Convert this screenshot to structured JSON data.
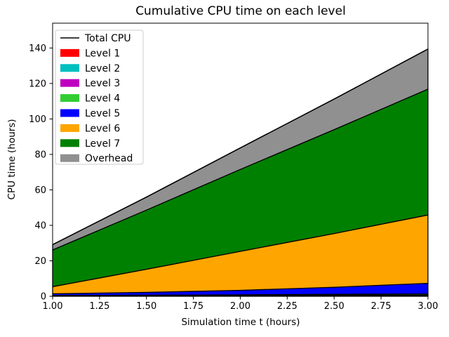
{
  "chart_data": {
    "type": "area",
    "stacked": true,
    "title": "Cumulative CPU time on each level",
    "xlabel": "Simulation time t (hours)",
    "ylabel": "CPU time (hours)",
    "x": [
      1.0,
      1.5,
      2.0,
      2.5,
      3.0
    ],
    "series": [
      {
        "name": "Level 1",
        "color": "#ff0000",
        "values": [
          0.05,
          0.07,
          0.09,
          0.11,
          0.13
        ]
      },
      {
        "name": "Level 2",
        "color": "#00bfbf",
        "values": [
          0.08,
          0.11,
          0.15,
          0.19,
          0.23
        ]
      },
      {
        "name": "Level 3",
        "color": "#bf00bf",
        "values": [
          0.12,
          0.18,
          0.24,
          0.31,
          0.38
        ]
      },
      {
        "name": "Level 4",
        "color": "#32cd32",
        "values": [
          0.18,
          0.27,
          0.37,
          0.48,
          0.6
        ]
      },
      {
        "name": "Level 5",
        "color": "#0000ff",
        "values": [
          1.0,
          1.6,
          2.5,
          4.0,
          6.0
        ]
      },
      {
        "name": "Level 6",
        "color": "#ffa500",
        "values": [
          4.0,
          13.0,
          22.0,
          30.3,
          38.5
        ]
      },
      {
        "name": "Level 7",
        "color": "#008000",
        "values": [
          20.7,
          33.4,
          46.2,
          58.6,
          71.0
        ]
      },
      {
        "name": "Overhead",
        "color": "#909090",
        "values": [
          3.0,
          7.3,
          12.1,
          17.2,
          22.6
        ]
      }
    ],
    "total_line": {
      "name": "Total CPU",
      "color": "#000000",
      "values": [
        29.1,
        55.9,
        83.7,
        111.2,
        139.4
      ]
    },
    "xlim": [
      1.0,
      3.0
    ],
    "ylim": [
      0,
      154
    ],
    "x_ticks": {
      "values": [
        1.0,
        1.25,
        1.5,
        1.75,
        2.0,
        2.25,
        2.5,
        2.75,
        3.0
      ],
      "labels": [
        "1.00",
        "1.25",
        "1.50",
        "1.75",
        "2.00",
        "2.25",
        "2.50",
        "2.75",
        "3.00"
      ]
    },
    "y_ticks": {
      "values": [
        0,
        20,
        40,
        60,
        80,
        100,
        120,
        140
      ],
      "labels": [
        "0",
        "20",
        "40",
        "60",
        "80",
        "100",
        "120",
        "140"
      ]
    },
    "legend": {
      "position": "upper left",
      "entries": [
        "Total CPU",
        "Level 1",
        "Level 2",
        "Level 3",
        "Level 4",
        "Level 5",
        "Level 6",
        "Level 7",
        "Overhead"
      ]
    },
    "grid": false,
    "edge_color": "#000000",
    "background": "#ffffff"
  }
}
